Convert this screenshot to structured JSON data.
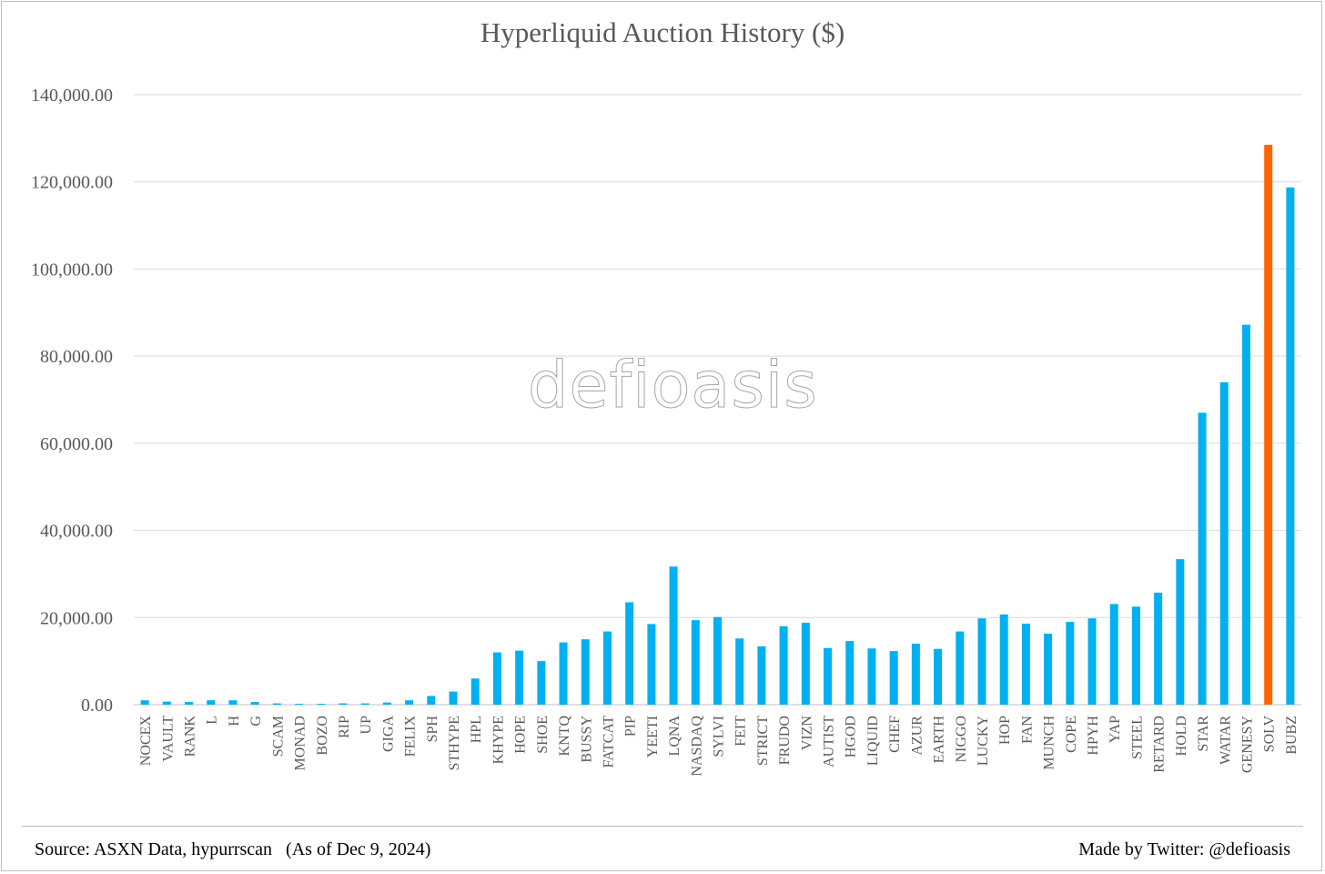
{
  "chart_data": {
    "type": "bar",
    "title": "Hyperliquid Auction History ($)",
    "watermark": "defioasis",
    "source": "Source: ASXN Data, hypurrscan   (As of Dec 9, 2024)",
    "credit": "Made by Twitter: @defioasis",
    "ylim": [
      0,
      140000
    ],
    "yticks": [
      0,
      20000,
      40000,
      60000,
      80000,
      100000,
      120000,
      140000
    ],
    "ytick_labels": [
      "0.00",
      "20,000.00",
      "40,000.00",
      "60,000.00",
      "80,000.00",
      "100,000.00",
      "120,000.00",
      "140,000.00"
    ],
    "grid": true,
    "colors": {
      "bar": "#00B0F0",
      "highlight": "#FF6600",
      "grid": "#d9d9d9",
      "text": "#595959"
    },
    "highlight_category": "SOLV",
    "categories": [
      "NOCEX",
      "VAULT",
      "RANK",
      "L",
      "H",
      "G",
      "SCAM",
      "MONAD",
      "BOZO",
      "RIP",
      "UP",
      "GIGA",
      "FELIX",
      "SPH",
      "STHYPE",
      "HPL",
      "KHYPE",
      "HOPE",
      "SHOE",
      "KNTQ",
      "BUSSY",
      "FATCAT",
      "PIP",
      "YEETI",
      "LQNA",
      "NASDAQ",
      "SYLVI",
      "FEIT",
      "STRICT",
      "FRUDO",
      "VIZN",
      "AUTIST",
      "HGOD",
      "LIQUID",
      "CHEF",
      "AZUR",
      "EARTH",
      "NIGGO",
      "LUCKY",
      "HOP",
      "FAN",
      "MUNCH",
      "COPE",
      "HPYH",
      "YAP",
      "STEEL",
      "RETARD",
      "HOLD",
      "STAR",
      "WATAR",
      "GENESY",
      "SOLV",
      "BUBZ"
    ],
    "values": [
      1000,
      700,
      600,
      1000,
      1000,
      600,
      300,
      200,
      200,
      300,
      300,
      500,
      1000,
      2000,
      3000,
      6000,
      12000,
      12400,
      10000,
      14300,
      15000,
      16800,
      23500,
      18500,
      31700,
      19400,
      20100,
      15200,
      13400,
      18000,
      18800,
      13000,
      14600,
      12900,
      12300,
      14000,
      12800,
      16800,
      19800,
      20700,
      18600,
      16300,
      19000,
      19800,
      23100,
      22500,
      25700,
      33400,
      67000,
      74000,
      87200,
      128500,
      118700
    ]
  }
}
